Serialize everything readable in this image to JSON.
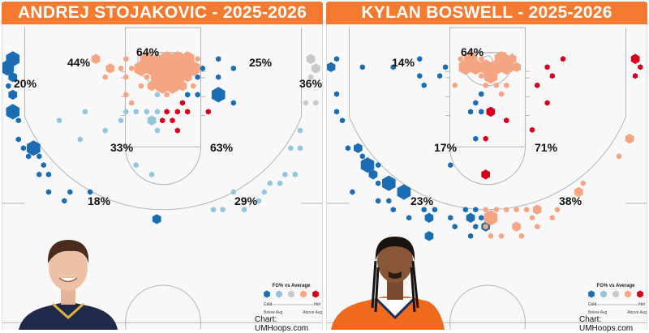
{
  "colors": {
    "title_bar": "#f47a2f",
    "levels": [
      "#1a6db3",
      "#92c5de",
      "#c8c8c8",
      "#f4a582",
      "#d6001c"
    ]
  },
  "legend": {
    "title": "FG% vs Average",
    "cold": "Cold",
    "hot": "Hot",
    "below": "Below Avg",
    "above": "Above Avg"
  },
  "credit": "Chart: UMHoops.com",
  "chart_data": [
    {
      "type": "scatter",
      "subtype": "hexbin shot chart",
      "title": "ANDREJ STOJAKOVIC - 2025-2026",
      "color_scale": "FG% vs Average (0=Cold/Below Avg ... 4=Hot/Above Avg)",
      "zones": [
        {
          "zone": "rim",
          "label": "64%"
        },
        {
          "zone": "left-mid-wing",
          "label": "44%"
        },
        {
          "zone": "right-mid-wing",
          "label": "25%"
        },
        {
          "zone": "left-corner-3",
          "label": "20%"
        },
        {
          "zone": "right-corner-3",
          "label": "36%"
        },
        {
          "zone": "left-elbow",
          "label": "33%"
        },
        {
          "zone": "right-elbow",
          "label": "63%"
        },
        {
          "zone": "left-wing-3",
          "label": "18%"
        },
        {
          "zone": "right-wing-3",
          "label": "29%"
        }
      ],
      "shots_columns": [
        "x_ft",
        "y_ft_from_baseline",
        "size",
        "level"
      ],
      "shots": [
        [
          -23.9,
          5.0,
          3,
          0
        ],
        [
          -24.8,
          6.4,
          3,
          0
        ],
        [
          -23.9,
          7.9,
          2,
          0
        ],
        [
          -24.6,
          9.3,
          1,
          0
        ],
        [
          -23.9,
          10.7,
          2,
          0
        ],
        [
          -23.9,
          13.4,
          3,
          0
        ],
        [
          -23.0,
          14.8,
          1,
          0
        ],
        [
          -23.0,
          17.8,
          1,
          0
        ],
        [
          -22.2,
          19.2,
          1,
          0
        ],
        [
          -20.6,
          19.2,
          3,
          0
        ],
        [
          -21.4,
          20.5,
          1,
          0
        ],
        [
          -19.7,
          20.5,
          1,
          0
        ],
        [
          -19.0,
          21.9,
          1,
          0
        ],
        [
          -19.7,
          23.4,
          1,
          0
        ],
        [
          -18.2,
          23.4,
          1,
          0
        ],
        [
          -18.2,
          26.2,
          1,
          0
        ],
        [
          -14.8,
          26.2,
          1,
          0
        ],
        [
          -11.6,
          26.2,
          1,
          0
        ],
        [
          -15.7,
          27.6,
          1,
          0
        ],
        [
          -1.0,
          30.5,
          2,
          0
        ],
        [
          3.9,
          10.7,
          1,
          0
        ],
        [
          5.5,
          10.7,
          1,
          0
        ],
        [
          5.5,
          7.9,
          1,
          0
        ],
        [
          6.3,
          6.5,
          1,
          0
        ],
        [
          8.8,
          5.0,
          1,
          0
        ],
        [
          11.2,
          6.5,
          1,
          0
        ],
        [
          8.8,
          7.9,
          1,
          0
        ],
        [
          8.8,
          10.7,
          3,
          0
        ],
        [
          11.2,
          12.0,
          1,
          0
        ],
        [
          8.0,
          29.0,
          1,
          1
        ],
        [
          9.5,
          29.0,
          1,
          1
        ],
        [
          12.9,
          29.0,
          1,
          1
        ],
        [
          15.2,
          27.6,
          1,
          1
        ],
        [
          11.2,
          26.2,
          1,
          1
        ],
        [
          16.1,
          26.2,
          1,
          1
        ],
        [
          17.0,
          24.8,
          1,
          1
        ],
        [
          18.6,
          24.8,
          1,
          1
        ],
        [
          19.4,
          23.4,
          1,
          1
        ],
        [
          21.0,
          23.4,
          1,
          1
        ],
        [
          20.3,
          19.2,
          1,
          1
        ],
        [
          21.8,
          19.2,
          1,
          1
        ],
        [
          -4.3,
          21.9,
          1,
          1
        ],
        [
          -1.8,
          23.4,
          1,
          1
        ],
        [
          21.8,
          16.4,
          1,
          1
        ],
        [
          -12.4,
          13.4,
          1,
          1
        ],
        [
          -16.5,
          14.8,
          1,
          1
        ],
        [
          -13.2,
          17.8,
          1,
          1
        ],
        [
          -9.2,
          16.4,
          1,
          1
        ],
        [
          -6.7,
          14.8,
          1,
          1
        ],
        [
          -5.9,
          13.4,
          1,
          1
        ],
        [
          -4.3,
          13.4,
          1,
          1
        ],
        [
          -2.6,
          13.4,
          1,
          1
        ],
        [
          -0.9,
          13.4,
          1,
          1
        ],
        [
          -1.8,
          14.8,
          2,
          1
        ],
        [
          -0.9,
          16.4,
          1,
          1
        ],
        [
          -0.9,
          10.7,
          1,
          1
        ],
        [
          0.6,
          13.4,
          1,
          4
        ],
        [
          2.3,
          13.4,
          1,
          4
        ],
        [
          3.9,
          13.4,
          1,
          4
        ],
        [
          7.2,
          13.4,
          1,
          4
        ],
        [
          3.1,
          12.0,
          1,
          4
        ],
        [
          -0.1,
          14.8,
          1,
          4
        ],
        [
          1.5,
          14.8,
          1,
          4
        ],
        [
          2.3,
          16.4,
          1,
          4
        ],
        [
          23.5,
          5.0,
          2,
          2
        ],
        [
          24.3,
          6.5,
          2,
          2
        ],
        [
          23.5,
          7.9,
          1,
          2
        ],
        [
          22.7,
          12.0,
          1,
          2
        ],
        [
          24.3,
          12.0,
          1,
          2
        ],
        [
          -10.7,
          5.0,
          2,
          3
        ],
        [
          -8.4,
          6.5,
          2,
          3
        ],
        [
          -5.9,
          5.0,
          1,
          3
        ],
        [
          -6.7,
          6.5,
          1,
          3
        ],
        [
          -5.0,
          6.5,
          1,
          3
        ],
        [
          -9.2,
          7.9,
          1,
          3
        ],
        [
          -5.9,
          7.9,
          1,
          3
        ],
        [
          -3.5,
          9.3,
          1,
          3
        ],
        [
          -5.9,
          10.7,
          1,
          3
        ],
        [
          -5.0,
          12.0,
          1,
          3
        ],
        [
          0.6,
          10.7,
          1,
          3
        ],
        [
          5.5,
          5.0,
          1,
          3
        ],
        [
          4.8,
          9.3,
          1,
          3
        ],
        [
          -2.6,
          7.9,
          1,
          3
        ],
        [
          -2.6,
          5.0,
          3,
          3
        ],
        [
          -0.9,
          5.0,
          2,
          3
        ],
        [
          0.6,
          5.0,
          3,
          3
        ],
        [
          2.3,
          5.0,
          3,
          3
        ],
        [
          3.9,
          5.0,
          3,
          3
        ],
        [
          -3.5,
          6.5,
          3,
          3
        ],
        [
          -1.8,
          6.5,
          3,
          3
        ],
        [
          -0.1,
          6.5,
          3,
          3
        ],
        [
          1.5,
          6.5,
          3,
          3
        ],
        [
          3.1,
          6.5,
          3,
          3
        ],
        [
          4.8,
          6.5,
          3,
          3
        ],
        [
          -0.9,
          7.9,
          3,
          3
        ],
        [
          0.6,
          7.9,
          3,
          3
        ],
        [
          2.3,
          7.9,
          3,
          3
        ],
        [
          3.9,
          7.9,
          2,
          3
        ],
        [
          -1.8,
          9.3,
          2,
          3
        ],
        [
          -0.1,
          9.3,
          3,
          3
        ],
        [
          1.5,
          9.3,
          3,
          3
        ],
        [
          3.1,
          9.3,
          2,
          3
        ]
      ]
    },
    {
      "type": "scatter",
      "subtype": "hexbin shot chart",
      "title": "KYLAN BOSWELL - 2025-2026",
      "color_scale": "FG% vs Average (0=Cold/Below Avg ... 4=Hot/Above Avg)",
      "zones": [
        {
          "zone": "rim",
          "label": "64%"
        },
        {
          "zone": "left-mid-wing",
          "label": "14%"
        },
        {
          "zone": "left-elbow",
          "label": "17%"
        },
        {
          "zone": "right-elbow",
          "label": "71%"
        },
        {
          "zone": "left-wing-3",
          "label": "23%"
        },
        {
          "zone": "right-wing-3",
          "label": "38%"
        }
      ],
      "shots_columns": [
        "x_ft",
        "y_ft_from_baseline",
        "size",
        "level"
      ],
      "shots": [
        [
          -24.0,
          5.0,
          1,
          0
        ],
        [
          -24.9,
          6.3,
          2,
          0
        ],
        [
          -19.9,
          6.3,
          1,
          0
        ],
        [
          -15.0,
          6.3,
          1,
          0
        ],
        [
          -10.8,
          5.0,
          1,
          0
        ],
        [
          -6.7,
          6.3,
          1,
          0
        ],
        [
          -10.8,
          7.7,
          1,
          0
        ],
        [
          -7.6,
          7.7,
          1,
          0
        ],
        [
          -10.1,
          9.2,
          1,
          0
        ],
        [
          -24.0,
          10.6,
          1,
          0
        ],
        [
          -24.0,
          13.4,
          1,
          0
        ],
        [
          -23.1,
          14.8,
          1,
          0
        ],
        [
          -1.0,
          10.6,
          1,
          0
        ],
        [
          -1.9,
          12.0,
          1,
          0
        ],
        [
          -2.7,
          13.4,
          1,
          0
        ],
        [
          -1.0,
          13.4,
          1,
          0
        ],
        [
          -1.9,
          17.7,
          1,
          0
        ],
        [
          -22.2,
          19.2,
          1,
          0
        ],
        [
          -20.6,
          19.2,
          2,
          0
        ],
        [
          -19.9,
          20.5,
          1,
          0
        ],
        [
          -19.1,
          21.9,
          3,
          0
        ],
        [
          -17.4,
          21.9,
          1,
          0
        ],
        [
          -18.2,
          23.4,
          2,
          0
        ],
        [
          -17.4,
          24.8,
          1,
          0
        ],
        [
          -15.7,
          24.8,
          3,
          0
        ],
        [
          -21.5,
          26.2,
          1,
          0
        ],
        [
          -13.3,
          26.2,
          3,
          0
        ],
        [
          -17.4,
          27.6,
          1,
          0
        ],
        [
          -15.7,
          27.6,
          1,
          0
        ],
        [
          -15.0,
          29.0,
          1,
          0
        ],
        [
          -10.1,
          29.0,
          1,
          0
        ],
        [
          -8.4,
          29.0,
          1,
          0
        ],
        [
          -3.5,
          29.0,
          1,
          0
        ],
        [
          -1.9,
          29.0,
          1,
          0
        ],
        [
          -12.5,
          30.3,
          1,
          0
        ],
        [
          -9.3,
          30.3,
          2,
          0
        ],
        [
          -5.9,
          30.3,
          1,
          0
        ],
        [
          -2.7,
          30.3,
          2,
          0
        ],
        [
          -1.0,
          30.3,
          1,
          0
        ],
        [
          -5.2,
          31.7,
          1,
          0
        ],
        [
          -1.9,
          31.7,
          1,
          0
        ],
        [
          -0.3,
          31.7,
          2,
          0
        ],
        [
          -9.3,
          33.2,
          2,
          0
        ],
        [
          -2.7,
          33.2,
          1,
          0
        ],
        [
          -5.9,
          21.9,
          1,
          0
        ],
        [
          12.0,
          5.0,
          1,
          4
        ],
        [
          9.5,
          6.3,
          1,
          4
        ],
        [
          10.3,
          7.7,
          1,
          4
        ],
        [
          7.9,
          9.2,
          1,
          4
        ],
        [
          9.5,
          12.0,
          1,
          4
        ],
        [
          3.0,
          14.8,
          1,
          4
        ],
        [
          7.1,
          16.3,
          1,
          4
        ],
        [
          0.5,
          13.4,
          2,
          4
        ],
        [
          -0.3,
          17.7,
          1,
          4
        ],
        [
          23.5,
          5.0,
          2,
          4
        ],
        [
          24.3,
          6.3,
          1,
          4
        ],
        [
          23.5,
          7.7,
          1,
          4
        ],
        [
          -0.3,
          23.4,
          2,
          4
        ],
        [
          -2.7,
          5.0,
          3,
          3
        ],
        [
          -1.0,
          5.0,
          1,
          3
        ],
        [
          2.2,
          5.0,
          3,
          3
        ],
        [
          3.9,
          5.0,
          2,
          3
        ],
        [
          -4.3,
          5.0,
          1,
          3
        ],
        [
          -3.5,
          6.3,
          3,
          3
        ],
        [
          -1.9,
          6.3,
          3,
          3
        ],
        [
          -0.3,
          6.3,
          3,
          3
        ],
        [
          1.4,
          6.3,
          3,
          3
        ],
        [
          3.0,
          6.3,
          3,
          3
        ],
        [
          4.6,
          6.3,
          2,
          3
        ],
        [
          -1.0,
          7.7,
          1,
          3
        ],
        [
          0.5,
          7.7,
          3,
          3
        ],
        [
          -5.2,
          9.2,
          1,
          3
        ],
        [
          -0.3,
          9.2,
          1,
          3
        ],
        [
          1.4,
          9.2,
          1,
          3
        ],
        [
          3.0,
          9.2,
          1,
          3
        ],
        [
          2.2,
          10.6,
          1,
          3
        ],
        [
          22.6,
          17.7,
          2,
          3
        ],
        [
          20.9,
          20.5,
          1,
          3
        ],
        [
          -0.3,
          29.0,
          1,
          3
        ],
        [
          1.4,
          29.0,
          1,
          3
        ],
        [
          3.0,
          29.0,
          1,
          3
        ],
        [
          4.6,
          29.0,
          1,
          3
        ],
        [
          6.2,
          29.0,
          1,
          3
        ],
        [
          7.9,
          29.0,
          2,
          3
        ],
        [
          11.1,
          29.0,
          1,
          3
        ],
        [
          0.5,
          30.3,
          3,
          3
        ],
        [
          7.1,
          30.3,
          1,
          3
        ],
        [
          10.3,
          30.3,
          1,
          3
        ],
        [
          4.6,
          31.7,
          2,
          3
        ],
        [
          7.9,
          31.7,
          1,
          3
        ],
        [
          0.5,
          33.2,
          1,
          3
        ],
        [
          2.2,
          33.2,
          1,
          3
        ],
        [
          5.4,
          33.2,
          1,
          3
        ],
        [
          14.5,
          26.2,
          2,
          3
        ],
        [
          15.2,
          24.8,
          1,
          3
        ],
        [
          -0.3,
          31.7,
          1,
          3
        ]
      ]
    }
  ]
}
